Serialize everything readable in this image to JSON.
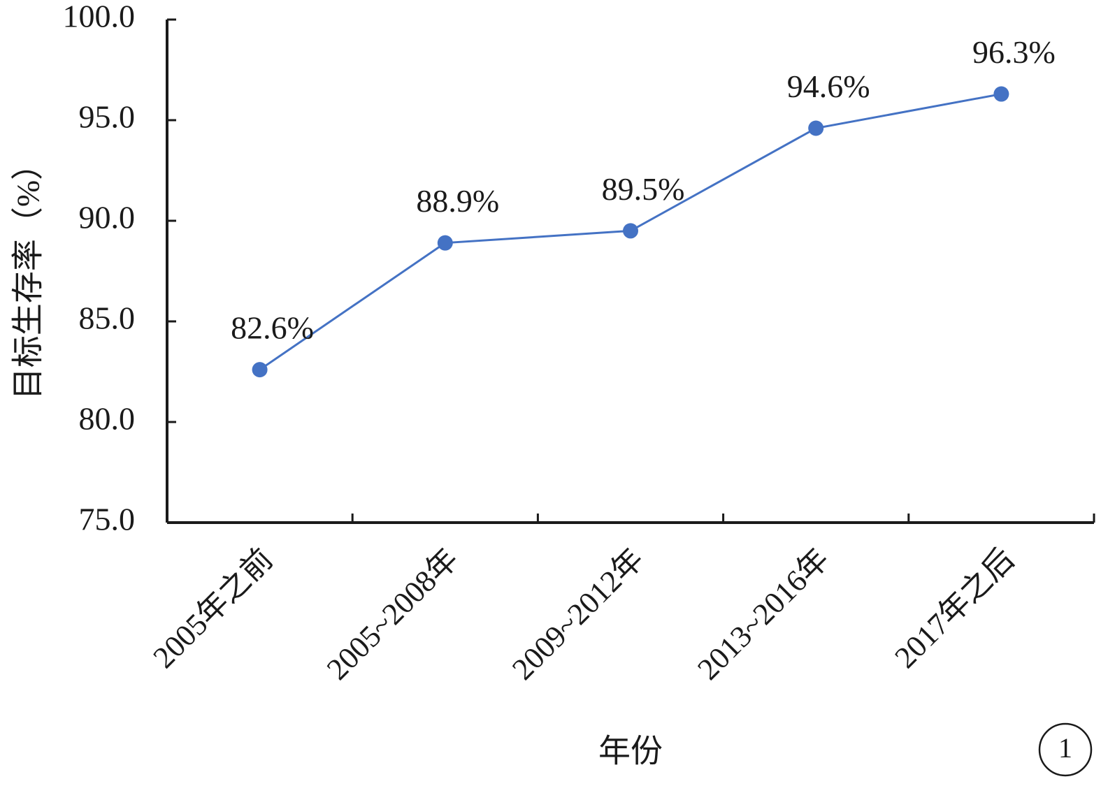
{
  "chart_data": {
    "type": "line",
    "categories": [
      "2005年之前",
      "2005~2008年",
      "2009~2012年",
      "2013~2016年",
      "2017年之后"
    ],
    "series": [
      {
        "values": [
          82.6,
          88.9,
          89.5,
          94.6,
          96.3
        ]
      }
    ],
    "data_labels": [
      "82.6%",
      "88.9%",
      "89.5%",
      "94.6%",
      "96.3%"
    ],
    "ylabel": "目标生存率（%）",
    "xlabel": "年份",
    "ylim": [
      75.0,
      100.0
    ],
    "yticks": [
      75.0,
      80.0,
      85.0,
      90.0,
      95.0,
      100.0
    ],
    "ytick_labels": [
      "75.0",
      "80.0",
      "85.0",
      "90.0",
      "95.0",
      "100.0"
    ],
    "grid": false,
    "colors": {
      "line": "#4472c4",
      "marker": "#4472c4",
      "axis": "#1a1a1a"
    }
  },
  "badge": {
    "label": "1"
  }
}
